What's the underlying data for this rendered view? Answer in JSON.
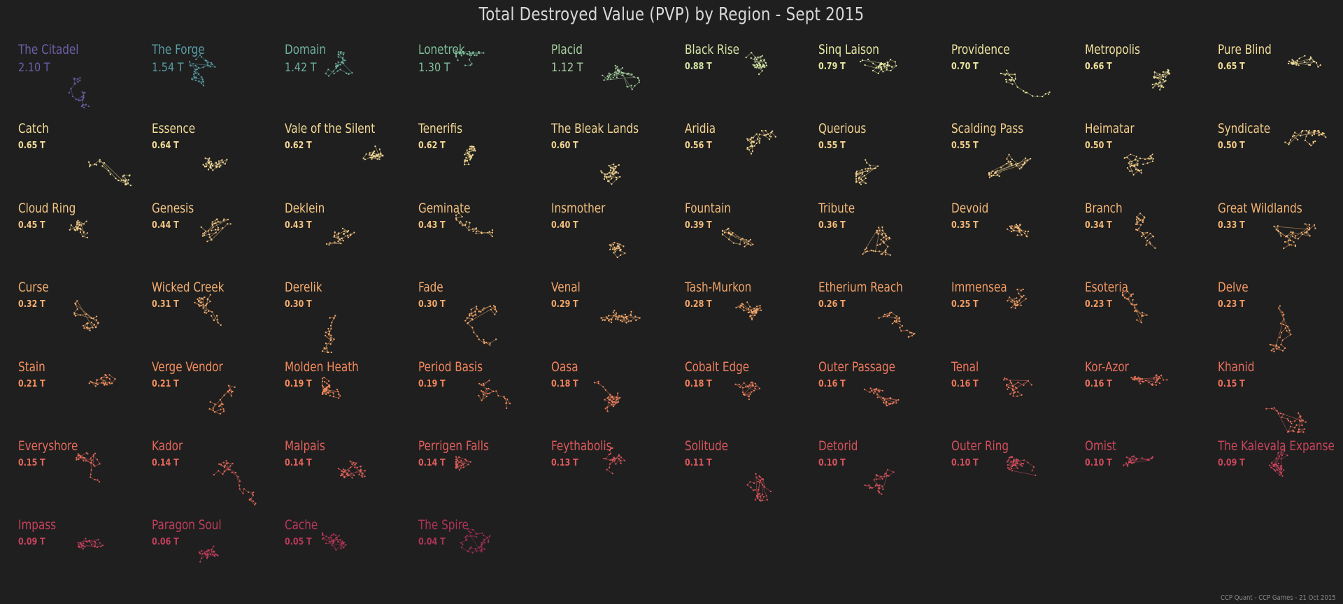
{
  "title": "Total Destroyed Value (PVP) by Region - Sept 2015",
  "footer": "CCP Quant - CCP Games - 21 Oct 2015",
  "chart_data": {
    "type": "small-multiples",
    "value_unit": "T",
    "layout": "10 columns, rows ordered by value descending",
    "regions": [
      {
        "name": "The Citadel",
        "value": 2.1,
        "label": "2.10 T",
        "color": "#6e5fa8"
      },
      {
        "name": "The Forge",
        "value": 1.54,
        "label": "1.54 T",
        "color": "#5a9ea6"
      },
      {
        "name": "Domain",
        "value": 1.42,
        "label": "1.42 T",
        "color": "#6fb0a0"
      },
      {
        "name": "Lonetrek",
        "value": 1.3,
        "label": "1.30 T",
        "color": "#7fbf9c"
      },
      {
        "name": "Placid",
        "value": 1.12,
        "label": "1.12 T",
        "color": "#a8d2a0"
      },
      {
        "name": "Black Rise",
        "value": 0.88,
        "label": "0.88 T",
        "color": "#d6e6a6"
      },
      {
        "name": "Sinq Laison",
        "value": 0.79,
        "label": "0.79 T",
        "color": "#e6e8a2"
      },
      {
        "name": "Providence",
        "value": 0.7,
        "label": "0.70 T",
        "color": "#eee6a0"
      },
      {
        "name": "Metropolis",
        "value": 0.66,
        "label": "0.66 T",
        "color": "#f2e29e"
      },
      {
        "name": "Pure Blind",
        "value": 0.65,
        "label": "0.65 T",
        "color": "#f4de9a"
      },
      {
        "name": "Catch",
        "value": 0.65,
        "label": "0.65 T",
        "color": "#f4de9a"
      },
      {
        "name": "Essence",
        "value": 0.64,
        "label": "0.64 T",
        "color": "#f4dc98"
      },
      {
        "name": "Vale of the Silent",
        "value": 0.62,
        "label": "0.62 T",
        "color": "#f4da96"
      },
      {
        "name": "Tenerifis",
        "value": 0.62,
        "label": "0.62 T",
        "color": "#f4d894"
      },
      {
        "name": "The Bleak Lands",
        "value": 0.6,
        "label": "0.60 T",
        "color": "#f4d692"
      },
      {
        "name": "Aridia",
        "value": 0.56,
        "label": "0.56 T",
        "color": "#f4d490"
      },
      {
        "name": "Querious",
        "value": 0.55,
        "label": "0.55 T",
        "color": "#f4d28e"
      },
      {
        "name": "Scalding Pass",
        "value": 0.55,
        "label": "0.55 T",
        "color": "#f4d08c"
      },
      {
        "name": "Heimatar",
        "value": 0.5,
        "label": "0.50 T",
        "color": "#f4ce8a"
      },
      {
        "name": "Syndicate",
        "value": 0.5,
        "label": "0.50 T",
        "color": "#f4cc88"
      },
      {
        "name": "Cloud Ring",
        "value": 0.45,
        "label": "0.45 T",
        "color": "#f4c886"
      },
      {
        "name": "Genesis",
        "value": 0.44,
        "label": "0.44 T",
        "color": "#f4c684"
      },
      {
        "name": "Deklein",
        "value": 0.43,
        "label": "0.43 T",
        "color": "#f4c482"
      },
      {
        "name": "Geminate",
        "value": 0.43,
        "label": "0.43 T",
        "color": "#f4c280"
      },
      {
        "name": "Insmother",
        "value": 0.4,
        "label": "0.40 T",
        "color": "#f4c07e"
      },
      {
        "name": "Fountain",
        "value": 0.39,
        "label": "0.39 T",
        "color": "#f4be7c"
      },
      {
        "name": "Tribute",
        "value": 0.36,
        "label": "0.36 T",
        "color": "#f4ba7a"
      },
      {
        "name": "Devoid",
        "value": 0.35,
        "label": "0.35 T",
        "color": "#f4b878"
      },
      {
        "name": "Branch",
        "value": 0.34,
        "label": "0.34 T",
        "color": "#f4b676"
      },
      {
        "name": "Great Wildlands",
        "value": 0.33,
        "label": "0.33 T",
        "color": "#f4b474"
      },
      {
        "name": "Curse",
        "value": 0.32,
        "label": "0.32 T",
        "color": "#f4b072"
      },
      {
        "name": "Wicked Creek",
        "value": 0.31,
        "label": "0.31 T",
        "color": "#f4ae70"
      },
      {
        "name": "Derelik",
        "value": 0.3,
        "label": "0.30 T",
        "color": "#f4ac6e"
      },
      {
        "name": "Fade",
        "value": 0.3,
        "label": "0.30 T",
        "color": "#f4aa6c"
      },
      {
        "name": "Venal",
        "value": 0.29,
        "label": "0.29 T",
        "color": "#f4a86a"
      },
      {
        "name": "Tash-Murkon",
        "value": 0.28,
        "label": "0.28 T",
        "color": "#f4a468"
      },
      {
        "name": "Etherium Reach",
        "value": 0.26,
        "label": "0.26 T",
        "color": "#f4a066"
      },
      {
        "name": "Immensea",
        "value": 0.25,
        "label": "0.25 T",
        "color": "#f49e64"
      },
      {
        "name": "Esoteria",
        "value": 0.23,
        "label": "0.23 T",
        "color": "#f49a62"
      },
      {
        "name": "Delve",
        "value": 0.23,
        "label": "0.23 T",
        "color": "#f49860"
      },
      {
        "name": "Stain",
        "value": 0.21,
        "label": "0.21 T",
        "color": "#f4905e"
      },
      {
        "name": "Verge Vendor",
        "value": 0.21,
        "label": "0.21 T",
        "color": "#f48e5c"
      },
      {
        "name": "Molden Heath",
        "value": 0.19,
        "label": "0.19 T",
        "color": "#f48a5c"
      },
      {
        "name": "Period Basis",
        "value": 0.19,
        "label": "0.19 T",
        "color": "#f4865c"
      },
      {
        "name": "Oasa",
        "value": 0.18,
        "label": "0.18 T",
        "color": "#f2825c"
      },
      {
        "name": "Cobalt Edge",
        "value": 0.18,
        "label": "0.18 T",
        "color": "#f07e5c"
      },
      {
        "name": "Outer Passage",
        "value": 0.16,
        "label": "0.16 T",
        "color": "#ee7a5c"
      },
      {
        "name": "Tenal",
        "value": 0.16,
        "label": "0.16 T",
        "color": "#ec765c"
      },
      {
        "name": "Kor-Azor",
        "value": 0.16,
        "label": "0.16 T",
        "color": "#ea725c"
      },
      {
        "name": "Khanid",
        "value": 0.15,
        "label": "0.15 T",
        "color": "#e86e5c"
      },
      {
        "name": "Everyshore",
        "value": 0.15,
        "label": "0.15 T",
        "color": "#e66a5c"
      },
      {
        "name": "Kador",
        "value": 0.14,
        "label": "0.14 T",
        "color": "#e4665c"
      },
      {
        "name": "Malpais",
        "value": 0.14,
        "label": "0.14 T",
        "color": "#e2625c"
      },
      {
        "name": "Perrigen Falls",
        "value": 0.14,
        "label": "0.14 T",
        "color": "#e05e5c"
      },
      {
        "name": "Feythabolis",
        "value": 0.13,
        "label": "0.13 T",
        "color": "#de5a5c"
      },
      {
        "name": "Solitude",
        "value": 0.11,
        "label": "0.11 T",
        "color": "#da565c"
      },
      {
        "name": "Detorid",
        "value": 0.1,
        "label": "0.10 T",
        "color": "#d6525c"
      },
      {
        "name": "Outer Ring",
        "value": 0.1,
        "label": "0.10 T",
        "color": "#d24e5c"
      },
      {
        "name": "Omist",
        "value": 0.1,
        "label": "0.10 T",
        "color": "#ce4a5c"
      },
      {
        "name": "The Kalevala Expanse",
        "value": 0.09,
        "label": "0.09 T",
        "color": "#ca465c"
      },
      {
        "name": "Impass",
        "value": 0.09,
        "label": "0.09 T",
        "color": "#c6425c"
      },
      {
        "name": "Paragon Soul",
        "value": 0.06,
        "label": "0.06 T",
        "color": "#c23e5c"
      },
      {
        "name": "Cache",
        "value": 0.05,
        "label": "0.05 T",
        "color": "#b8385a"
      },
      {
        "name": "The Spire",
        "value": 0.04,
        "label": "0.04 T",
        "color": "#ae3358"
      }
    ]
  }
}
